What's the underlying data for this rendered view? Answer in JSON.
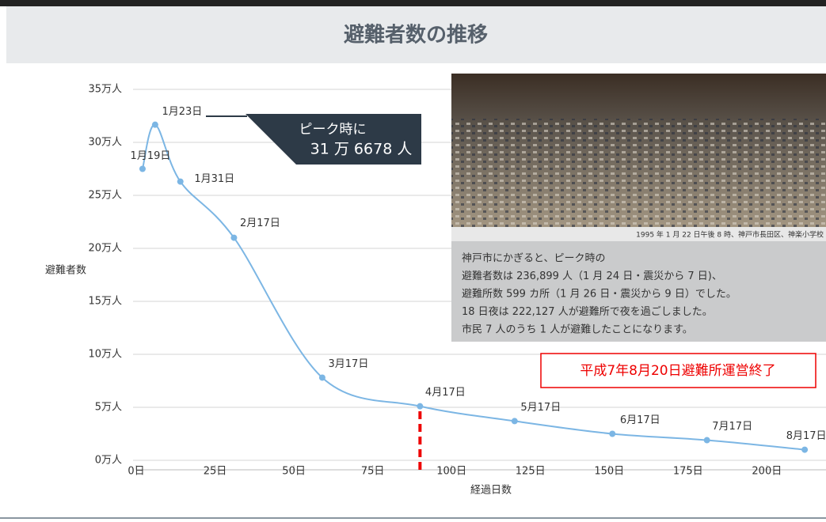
{
  "chart_data": {
    "type": "line",
    "title": "避難者数の推移",
    "y_label": "避難者数",
    "x_label": "経過日数",
    "x": [
      2,
      6,
      14,
      31,
      59,
      90,
      120,
      151,
      181,
      212
    ],
    "labels": [
      "1月19日",
      "1月23日",
      "1月31日",
      "2月17日",
      "3月17日",
      "4月17日",
      "5月17日",
      "6月17日",
      "7月17日",
      "8月17日"
    ],
    "values": [
      27.5,
      31.6678,
      26.3,
      21.0,
      7.8,
      5.1,
      3.7,
      2.5,
      1.9,
      1.0
    ],
    "color": "#7cb6e4",
    "xlim": [
      0,
      218
    ],
    "ylim": [
      0,
      35
    ],
    "xticks": [
      {
        "value": 0,
        "label": "0日"
      },
      {
        "value": 25,
        "label": "25日"
      },
      {
        "value": 50,
        "label": "50日"
      },
      {
        "value": 75,
        "label": "75日"
      },
      {
        "value": 100,
        "label": "100日"
      },
      {
        "value": 125,
        "label": "125日"
      },
      {
        "value": 150,
        "label": "150日"
      },
      {
        "value": 175,
        "label": "175日"
      },
      {
        "value": 200,
        "label": "200日"
      }
    ],
    "yticks": [
      {
        "value": 0,
        "label": "0万人"
      },
      {
        "value": 5,
        "label": "5万人"
      },
      {
        "value": 10,
        "label": "10万人"
      },
      {
        "value": 15,
        "label": "15万人"
      },
      {
        "value": 20,
        "label": "20万人"
      },
      {
        "value": 25,
        "label": "25万人"
      },
      {
        "value": 30,
        "label": "30万人"
      },
      {
        "value": 35,
        "label": "35万人"
      }
    ],
    "grid": true,
    "peak_annotation": [
      "ピーク時に",
      "31 万 6678 人"
    ],
    "marker_line_x": 90,
    "end_annotation": "平成7年8月20日避難所運営終了",
    "photo_caption": "1995 年 1 月 22 日午後 8 時、神戸市長田区、神楽小学校",
    "photo_text": [
      "神戸市にかぎると、ピーク時の",
      "避難者数は 236,899 人（1 月 24 日・震災から 7 日)、",
      "避難所数 599 カ所（1 月 26 日・震災から 9 日）でした。",
      "18 日夜は 222,127 人が避難所で夜を過ごしました。",
      "市民 7 人のうち 1 人が避難したことになります。"
    ]
  }
}
